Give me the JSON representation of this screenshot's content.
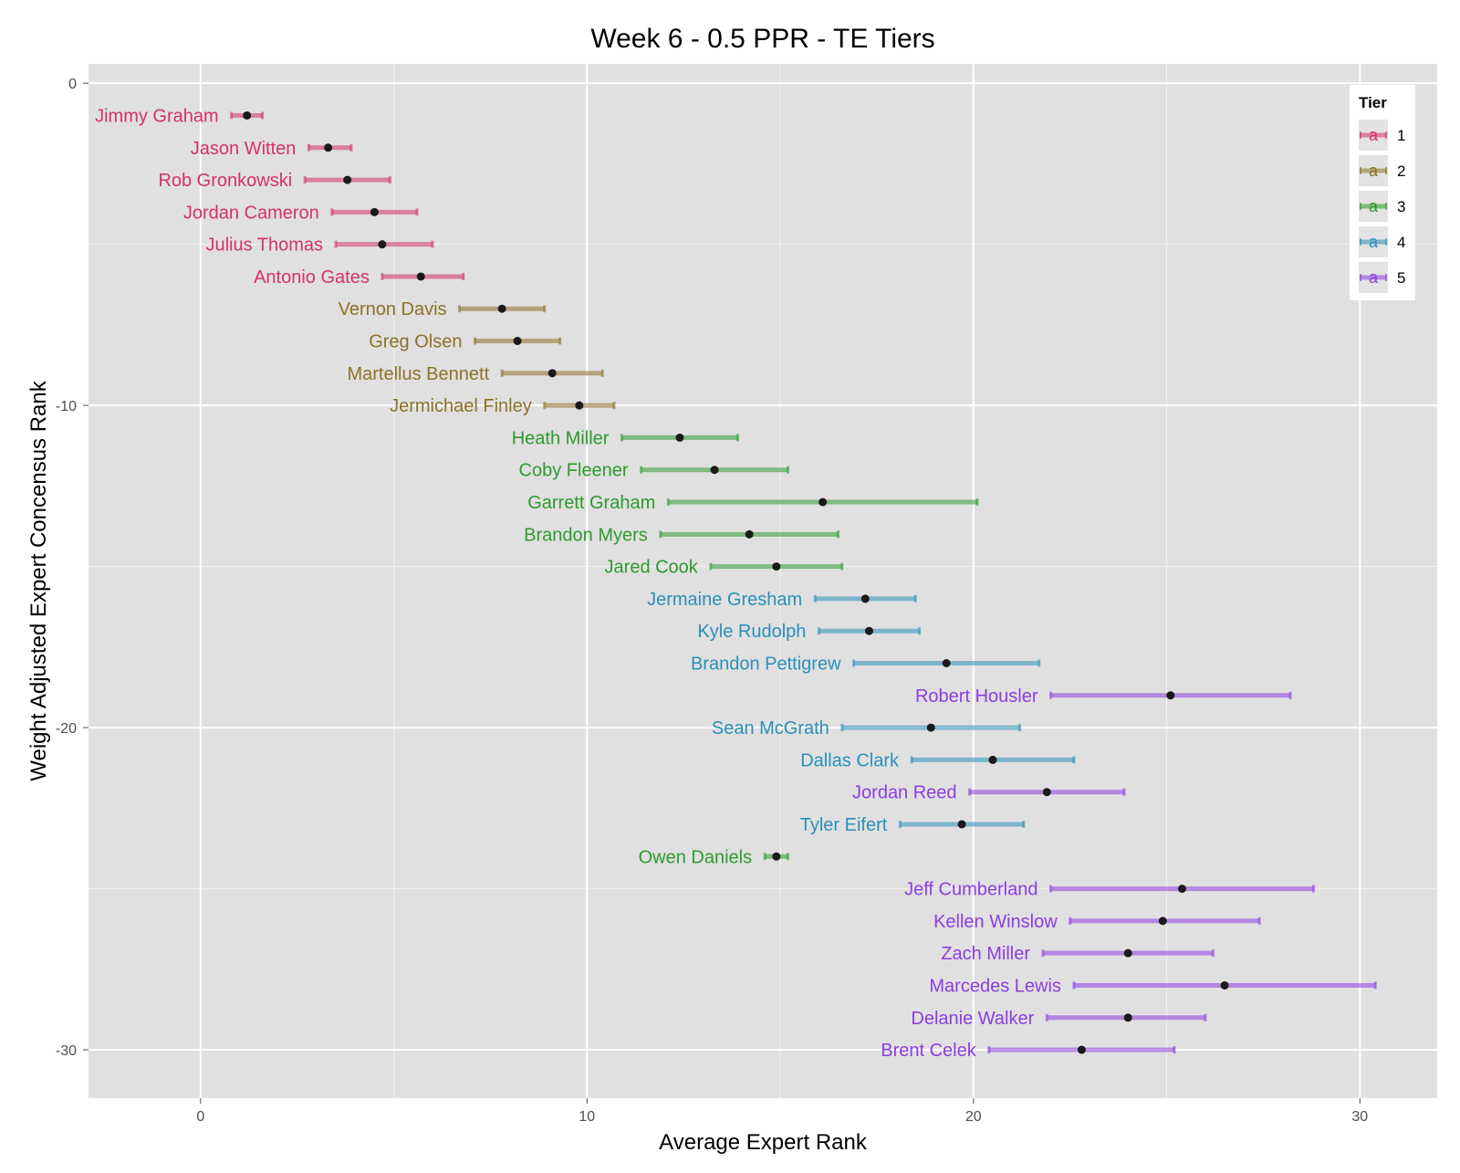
{
  "chart_data": {
    "type": "scatter",
    "title": "Week 6 - 0.5 PPR - TE Tiers",
    "xlabel": "Average Expert Rank",
    "ylabel": "Weight Adjusted Expert Concensus Rank",
    "xlim": [
      -2.9,
      32.0
    ],
    "ylim": [
      -31.5,
      0.6
    ],
    "x_ticks": [
      0,
      10,
      20,
      30
    ],
    "y_ticks": [
      0,
      -10,
      -20,
      -30
    ],
    "x_tick_labels": [
      "0",
      "10",
      "20",
      "30"
    ],
    "y_tick_labels": [
      "0",
      "-10",
      "-20",
      "-30"
    ],
    "grid": true,
    "legend": {
      "title": "Tier",
      "placement": "top-right",
      "glyph": "a",
      "entries": [
        {
          "label": "1",
          "color": "#d6306b"
        },
        {
          "label": "2",
          "color": "#8c7127"
        },
        {
          "label": "3",
          "color": "#2d9a2d"
        },
        {
          "label": "4",
          "color": "#2a8fb8"
        },
        {
          "label": "5",
          "color": "#8a3ee0"
        }
      ]
    },
    "series": [
      {
        "name": "Jimmy Graham",
        "tier": 1,
        "x": 1.2,
        "y": -1,
        "low": 0.8,
        "high": 1.6
      },
      {
        "name": "Jason Witten",
        "tier": 1,
        "x": 3.3,
        "y": -2,
        "low": 2.8,
        "high": 3.9
      },
      {
        "name": "Rob Gronkowski",
        "tier": 1,
        "x": 3.8,
        "y": -3,
        "low": 2.7,
        "high": 4.9
      },
      {
        "name": "Jordan Cameron",
        "tier": 1,
        "x": 4.5,
        "y": -4,
        "low": 3.4,
        "high": 5.6
      },
      {
        "name": "Julius Thomas",
        "tier": 1,
        "x": 4.7,
        "y": -5,
        "low": 3.5,
        "high": 6.0
      },
      {
        "name": "Antonio Gates",
        "tier": 1,
        "x": 5.7,
        "y": -6,
        "low": 4.7,
        "high": 6.8
      },
      {
        "name": "Vernon Davis",
        "tier": 2,
        "x": 7.8,
        "y": -7,
        "low": 6.7,
        "high": 8.9
      },
      {
        "name": "Greg Olsen",
        "tier": 2,
        "x": 8.2,
        "y": -8,
        "low": 7.1,
        "high": 9.3
      },
      {
        "name": "Martellus Bennett",
        "tier": 2,
        "x": 9.1,
        "y": -9,
        "low": 7.8,
        "high": 10.4
      },
      {
        "name": "Jermichael Finley",
        "tier": 2,
        "x": 9.8,
        "y": -10,
        "low": 8.9,
        "high": 10.7
      },
      {
        "name": "Heath Miller",
        "tier": 3,
        "x": 12.4,
        "y": -11,
        "low": 10.9,
        "high": 13.9
      },
      {
        "name": "Coby Fleener",
        "tier": 3,
        "x": 13.3,
        "y": -12,
        "low": 11.4,
        "high": 15.2
      },
      {
        "name": "Garrett Graham",
        "tier": 3,
        "x": 16.1,
        "y": -13,
        "low": 12.1,
        "high": 20.1
      },
      {
        "name": "Brandon Myers",
        "tier": 3,
        "x": 14.2,
        "y": -14,
        "low": 11.9,
        "high": 16.5
      },
      {
        "name": "Jared Cook",
        "tier": 3,
        "x": 14.9,
        "y": -15,
        "low": 13.2,
        "high": 16.6
      },
      {
        "name": "Jermaine Gresham",
        "tier": 4,
        "x": 17.2,
        "y": -16,
        "low": 15.9,
        "high": 18.5
      },
      {
        "name": "Kyle Rudolph",
        "tier": 4,
        "x": 17.3,
        "y": -17,
        "low": 16.0,
        "high": 18.6
      },
      {
        "name": "Brandon Pettigrew",
        "tier": 4,
        "x": 19.3,
        "y": -18,
        "low": 16.9,
        "high": 21.7
      },
      {
        "name": "Robert Housler",
        "tier": 5,
        "x": 25.1,
        "y": -19,
        "low": 22.0,
        "high": 28.2
      },
      {
        "name": "Sean McGrath",
        "tier": 4,
        "x": 18.9,
        "y": -20,
        "low": 16.6,
        "high": 21.2
      },
      {
        "name": "Dallas Clark",
        "tier": 4,
        "x": 20.5,
        "y": -21,
        "low": 18.4,
        "high": 22.6
      },
      {
        "name": "Jordan Reed",
        "tier": 5,
        "x": 21.9,
        "y": -22,
        "low": 19.9,
        "high": 23.9
      },
      {
        "name": "Tyler Eifert",
        "tier": 4,
        "x": 19.7,
        "y": -23,
        "low": 18.1,
        "high": 21.3
      },
      {
        "name": "Owen Daniels",
        "tier": 3,
        "x": 14.9,
        "y": -24,
        "low": 14.6,
        "high": 15.2
      },
      {
        "name": "Jeff Cumberland",
        "tier": 5,
        "x": 25.4,
        "y": -25,
        "low": 22.0,
        "high": 28.8
      },
      {
        "name": "Kellen Winslow",
        "tier": 5,
        "x": 24.9,
        "y": -26,
        "low": 22.5,
        "high": 27.4
      },
      {
        "name": "Zach Miller",
        "tier": 5,
        "x": 24.0,
        "y": -27,
        "low": 21.8,
        "high": 26.2
      },
      {
        "name": "Marcedes Lewis",
        "tier": 5,
        "x": 26.5,
        "y": -28,
        "low": 22.6,
        "high": 30.4
      },
      {
        "name": "Delanie Walker",
        "tier": 5,
        "x": 24.0,
        "y": -29,
        "low": 21.9,
        "high": 26.0
      },
      {
        "name": "Brent Celek",
        "tier": 5,
        "x": 22.8,
        "y": -30,
        "low": 20.4,
        "high": 25.2
      }
    ]
  }
}
